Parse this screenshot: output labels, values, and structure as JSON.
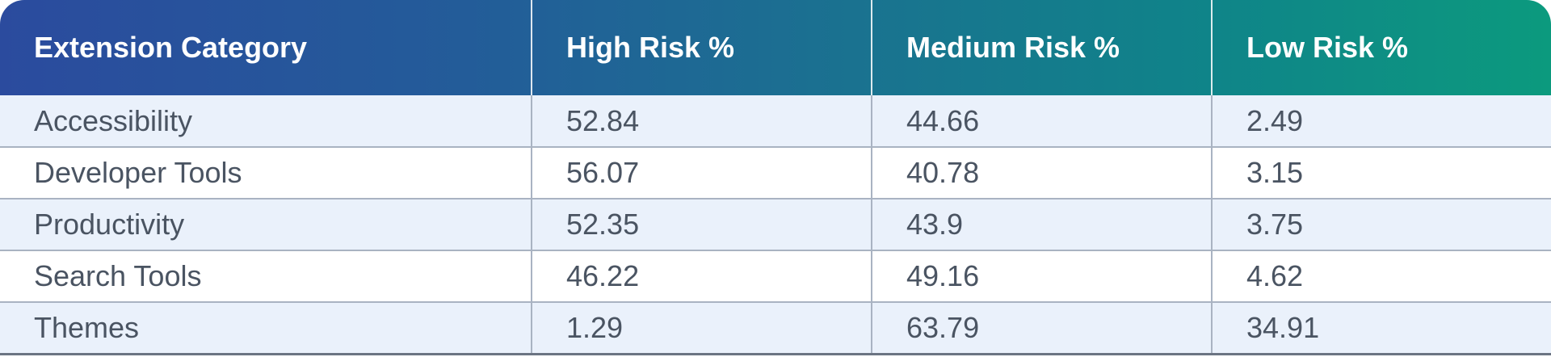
{
  "table": {
    "headers": [
      "Extension Category",
      "High Risk %",
      "Medium Risk %",
      "Low Risk %"
    ],
    "rows": [
      [
        "Accessibility",
        "52.84",
        "44.66",
        "2.49"
      ],
      [
        "Developer Tools",
        "56.07",
        "40.78",
        "3.15"
      ],
      [
        "Productivity",
        "52.35",
        "43.9",
        "3.75"
      ],
      [
        "Search Tools",
        "46.22",
        "49.16",
        "4.62"
      ],
      [
        "Themes",
        "1.29",
        "63.79",
        "34.91"
      ]
    ]
  },
  "colors": {
    "header_gradient_start": "#2b4b9e",
    "header_gradient_end": "#0c9a7e",
    "row_alt_background": "#eaf1fb",
    "row_background": "#ffffff",
    "text": "#4a5462"
  }
}
